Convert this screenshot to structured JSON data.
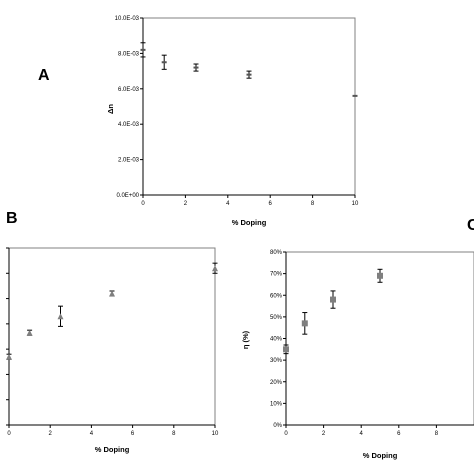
{
  "panels": [
    {
      "letter": "A"
    },
    {
      "letter": "B"
    },
    {
      "letter": "C"
    }
  ],
  "chart_data": [
    {
      "panel": "A",
      "type": "scatter",
      "xlabel": "% Doping",
      "ylabel": "Δn",
      "xlim": [
        0,
        10
      ],
      "ylim": [
        0,
        0.01
      ],
      "x_ticks": [
        "0",
        "2",
        "4",
        "6",
        "8",
        "10"
      ],
      "y_ticks": [
        "0.0E+00",
        "2.0E-03",
        "4.0E-03",
        "6.0E-03",
        "8.0E-03",
        "10.0E-03"
      ],
      "grid": false,
      "marker": "dash",
      "marker_color": "#555555",
      "points": [
        {
          "x": 0,
          "y": 0.0082,
          "err": 0.0004
        },
        {
          "x": 1,
          "y": 0.0075,
          "err": 0.0004
        },
        {
          "x": 2.5,
          "y": 0.0072,
          "err": 0.0002
        },
        {
          "x": 5,
          "y": 0.0068,
          "err": 0.0002
        },
        {
          "x": 10,
          "y": 0.0056,
          "err": 0
        }
      ]
    },
    {
      "panel": "B",
      "type": "scatter",
      "xlabel": "% Doping",
      "xlim": [
        0,
        10
      ],
      "x_ticks": [
        "0",
        "2",
        "4",
        "6",
        "8",
        "10"
      ],
      "ylim": [
        0,
        7
      ],
      "grid": false,
      "marker": "triangle",
      "marker_color": "#7f7f7f",
      "points": [
        {
          "x": 0,
          "y": 2.7,
          "err": 0.1
        },
        {
          "x": 1,
          "y": 3.65,
          "err": 0.1
        },
        {
          "x": 2.5,
          "y": 4.3,
          "err": 0.4
        },
        {
          "x": 5,
          "y": 5.2,
          "err": 0.1
        },
        {
          "x": 10,
          "y": 6.2,
          "err": 0.2
        }
      ]
    },
    {
      "panel": "C",
      "type": "scatter",
      "xlabel": "% Doping",
      "ylabel": "η (%)",
      "xlim": [
        0,
        10
      ],
      "x_ticks": [
        "0",
        "2",
        "4",
        "6",
        "8"
      ],
      "ylim": [
        0,
        80
      ],
      "y_ticks": [
        "0%",
        "10%",
        "20%",
        "30%",
        "40%",
        "50%",
        "60%",
        "70%",
        "80%"
      ],
      "grid": false,
      "marker": "square",
      "marker_color": "#7f7f7f",
      "points": [
        {
          "x": 0,
          "y": 35,
          "err": 2
        },
        {
          "x": 1,
          "y": 47,
          "err": 5
        },
        {
          "x": 2.5,
          "y": 58,
          "err": 4
        },
        {
          "x": 5,
          "y": 69,
          "err": 3
        }
      ]
    }
  ]
}
